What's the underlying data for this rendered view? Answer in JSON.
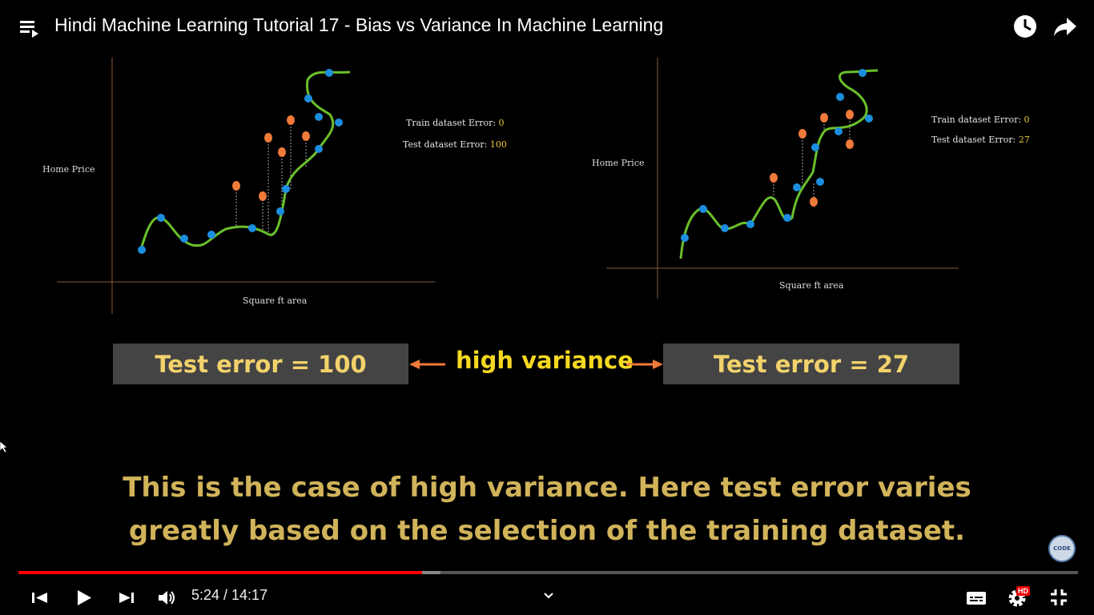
{
  "topbar": {
    "title": "Hindi Machine Learning Tutorial 17 - Bias vs Variance In Machine Learning",
    "icons": [
      "playlist-icon",
      "watch-later-icon",
      "share-icon"
    ]
  },
  "slide": {
    "left_chart": {
      "ylabel": "Home Price",
      "xlabel": "Square ft area",
      "train_label": "Train dataset Error:",
      "train_value": "0",
      "test_label": "Test dataset Error:",
      "test_value": "100"
    },
    "right_chart": {
      "ylabel": "Home Price",
      "xlabel": "Square ft area",
      "train_label": "Train dataset Error:",
      "train_value": "0",
      "test_label": "Test dataset Error:",
      "test_value": "27"
    },
    "box_left": "Test error = 100",
    "box_right": "Test error = 27",
    "middle_label": "high variance",
    "caption_line1": "This is the case of high variance. Here test error varies",
    "caption_line2": "greatly based on the selection of the training dataset.",
    "channel_logo_text": "CODE",
    "colors": {
      "axis": "#8a5a3a",
      "curve": "#6abf2a",
      "train_point": "#1c8ee0",
      "test_point": "#f07a3a",
      "arrow": "#f07a3a",
      "caption": "#d1b35a",
      "highlight": "#f5d820",
      "box_bg": "#444444",
      "box_text": "#f2d26b"
    }
  },
  "player": {
    "current_time": "5:24",
    "total_time": "14:17",
    "time_text": "5:24 / 14:17",
    "progress_fraction": 0.381,
    "buffer_fraction": 0.398,
    "hd_badge": "HD",
    "controls": [
      "prev-icon",
      "play-icon",
      "next-icon",
      "volume-icon",
      "chevron-down-icon",
      "subtitles-icon",
      "settings-icon",
      "fullscreen-exit-icon"
    ]
  }
}
